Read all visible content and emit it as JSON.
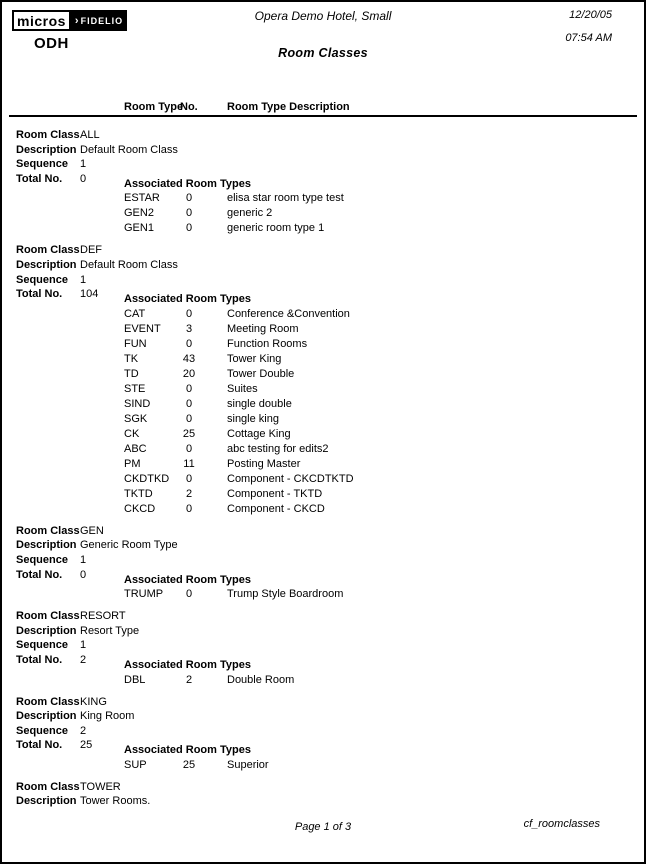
{
  "header": {
    "logo_micros": "micros",
    "logo_chevron": "›",
    "logo_fidelio": "FIDELIO",
    "property_code": "ODH",
    "hotel_name": "Opera Demo Hotel, Small",
    "report_title": "Room Classes",
    "date": "12/20/05",
    "time": "07:54 AM"
  },
  "columns": {
    "room_type": "Room Type",
    "no": "No.",
    "room_type_description": "Room Type Description"
  },
  "labels": {
    "room_class": "Room Class",
    "description": "Description",
    "sequence": "Sequence",
    "total_no": "Total No.",
    "associated": "Associated Room Types"
  },
  "sections": [
    {
      "room_class": "ALL",
      "description": "Default Room Class",
      "sequence": "1",
      "total_no": "0",
      "room_types": [
        {
          "code": "ESTAR",
          "no": "0",
          "desc": "elisa star room type test"
        },
        {
          "code": "GEN2",
          "no": "0",
          "desc": "generic 2"
        },
        {
          "code": "GEN1",
          "no": "0",
          "desc": "generic room type 1"
        }
      ]
    },
    {
      "room_class": "DEF",
      "description": "Default Room Class",
      "sequence": "1",
      "total_no": "104",
      "room_types": [
        {
          "code": "CAT",
          "no": "0",
          "desc": "Conference &Convention"
        },
        {
          "code": "EVENT",
          "no": "3",
          "desc": "Meeting Room"
        },
        {
          "code": "FUN",
          "no": "0",
          "desc": "Function Rooms"
        },
        {
          "code": "TK",
          "no": "43",
          "desc": "Tower King"
        },
        {
          "code": "TD",
          "no": "20",
          "desc": "Tower Double"
        },
        {
          "code": "STE",
          "no": "0",
          "desc": "Suites"
        },
        {
          "code": "SIND",
          "no": "0",
          "desc": "single double"
        },
        {
          "code": "SGK",
          "no": "0",
          "desc": "single king"
        },
        {
          "code": "CK",
          "no": "25",
          "desc": "Cottage King"
        },
        {
          "code": "ABC",
          "no": "0",
          "desc": "abc testing for edits2"
        },
        {
          "code": "PM",
          "no": "11",
          "desc": "Posting Master"
        },
        {
          "code": "CKDTKD",
          "no": "0",
          "desc": "Component - CKCDTKTD"
        },
        {
          "code": "TKTD",
          "no": "2",
          "desc": "Component - TKTD"
        },
        {
          "code": "CKCD",
          "no": "0",
          "desc": "Component - CKCD"
        }
      ]
    },
    {
      "room_class": "GEN",
      "description": "Generic Room Type",
      "sequence": "1",
      "total_no": "0",
      "room_types": [
        {
          "code": "TRUMP",
          "no": "0",
          "desc": "Trump Style Boardroom"
        }
      ]
    },
    {
      "room_class": "RESORT",
      "description": "Resort Type",
      "sequence": "1",
      "total_no": "2",
      "room_types": [
        {
          "code": "DBL",
          "no": "2",
          "desc": "Double Room"
        }
      ]
    },
    {
      "room_class": "KING",
      "description": "King Room",
      "sequence": "2",
      "total_no": "25",
      "room_types": [
        {
          "code": "SUP",
          "no": "25",
          "desc": "Superior"
        }
      ]
    },
    {
      "room_class": "TOWER",
      "description": "Tower Rooms."
    }
  ],
  "footer": {
    "page": "Page 1 of 3",
    "report_id": "cf_roomclasses"
  }
}
